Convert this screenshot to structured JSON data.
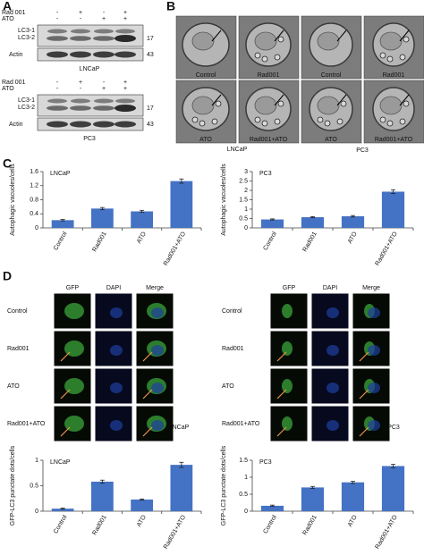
{
  "panel_labels": [
    "A",
    "B",
    "C",
    "D"
  ],
  "blots": [
    {
      "rows": [
        {
          "label": "Rad 001",
          "signs": [
            "-",
            "+",
            "-",
            "+"
          ]
        },
        {
          "label": "ATO",
          "signs": [
            "-",
            "-",
            "+",
            "+"
          ]
        }
      ],
      "band_labels": [
        "LC3-1",
        "LC3-2"
      ],
      "marker_lc3": "17",
      "actin": "Actin",
      "marker_actin": "43",
      "cell_line": "LNCaP"
    },
    {
      "rows": [
        {
          "label": "Rad 001",
          "signs": [
            "-",
            "+",
            "-",
            "+"
          ]
        },
        {
          "label": "ATO",
          "signs": [
            "-",
            "-",
            "+",
            "+"
          ]
        }
      ],
      "band_labels": [
        "LC3-1",
        "LC3-2"
      ],
      "marker_lc3": "17",
      "actin": "Actin",
      "marker_actin": "43",
      "cell_line": "PC3"
    }
  ],
  "em": {
    "labels": [
      [
        "Control",
        "Rad001",
        "Control",
        "Rad001"
      ],
      [
        "ATO",
        "Rad001+ATO",
        "ATO",
        "Rad001+ATO"
      ]
    ],
    "cell_lines": [
      "LNCaP",
      "PC3"
    ]
  },
  "fluorescence": [
    {
      "channels": [
        "GFP",
        "DAPI",
        "Merge"
      ],
      "rows": [
        "Control",
        "Rad001",
        "ATO",
        "Rad001+ATO"
      ],
      "cell_line": "LNCaP"
    },
    {
      "channels": [
        "GFP",
        "DAPI",
        "Merge"
      ],
      "rows": [
        "Control",
        "Rad001",
        "ATO",
        "Rad001+ATO"
      ],
      "cell_line": "PC3"
    }
  ],
  "chart_data": [
    {
      "type": "bar",
      "title": "LNCaP",
      "y_label": "Autophagic vacuoles/cells",
      "categories": [
        "Control",
        "Rad001",
        "ATO",
        "Rad001+ATO"
      ],
      "values": [
        0.22,
        0.55,
        0.47,
        1.33
      ],
      "errors": [
        0.02,
        0.03,
        0.03,
        0.06
      ],
      "color": "#4472c4",
      "ylim": [
        0,
        1.6
      ],
      "yticks": [
        0,
        0.4,
        0.8,
        1.2,
        1.6
      ]
    },
    {
      "type": "bar",
      "title": "PC3",
      "y_label": "Autophagic vacuoles/cells",
      "categories": [
        "Control",
        "Rad001",
        "ATO",
        "Rad001+ATO"
      ],
      "values": [
        0.45,
        0.57,
        0.62,
        1.93
      ],
      "errors": [
        0.03,
        0.03,
        0.04,
        0.1
      ],
      "color": "#4472c4",
      "ylim": [
        0,
        3
      ],
      "yticks": [
        0,
        0.5,
        1,
        1.5,
        2,
        2.5,
        3
      ]
    },
    {
      "type": "bar",
      "title": "LNCaP",
      "y_label": "GFP-LC3 punctate dots/cells",
      "categories": [
        "Control",
        "Rad001",
        "ATO",
        "Rad001+ATO"
      ],
      "values": [
        0.05,
        0.58,
        0.23,
        0.91
      ],
      "errors": [
        0.01,
        0.03,
        0.01,
        0.05
      ],
      "color": "#4472c4",
      "ylim": [
        0,
        1
      ],
      "yticks": [
        0,
        0.5,
        1
      ]
    },
    {
      "type": "bar",
      "title": "PC3",
      "y_label": "GFP-LC3 punctate dots/cells",
      "categories": [
        "Control",
        "Rad001",
        "ATO",
        "Rad001+ATO"
      ],
      "values": [
        0.16,
        0.7,
        0.85,
        1.33
      ],
      "errors": [
        0.02,
        0.03,
        0.03,
        0.05
      ],
      "color": "#4472c4",
      "ylim": [
        0,
        1.5
      ],
      "yticks": [
        0,
        0.5,
        1,
        1.5
      ]
    }
  ]
}
